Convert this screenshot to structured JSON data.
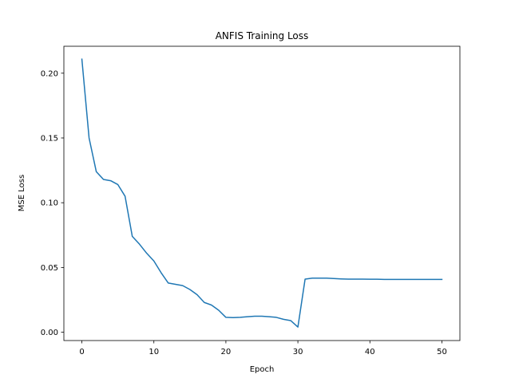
{
  "chart_data": {
    "type": "line",
    "title": "ANFIS Training Loss",
    "xlabel": "Epoch",
    "ylabel": "MSE Loss",
    "xlim": [
      -2.5,
      52.5
    ],
    "ylim": [
      -0.0064,
      0.2208
    ],
    "x_ticks": [
      0,
      10,
      20,
      30,
      40,
      50
    ],
    "x_tick_labels": [
      "0",
      "10",
      "20",
      "30",
      "40",
      "50"
    ],
    "y_ticks": [
      0.0,
      0.05,
      0.1,
      0.15,
      0.2
    ],
    "y_tick_labels": [
      "0.00",
      "0.05",
      "0.10",
      "0.15",
      "0.20"
    ],
    "grid": false,
    "series": [
      {
        "color": "#1f77b4",
        "x": [
          0,
          1,
          2,
          3,
          4,
          5,
          6,
          7,
          8,
          9,
          10,
          11,
          12,
          13,
          14,
          15,
          16,
          17,
          18,
          19,
          20,
          21,
          22,
          23,
          24,
          25,
          26,
          27,
          28,
          29,
          30,
          31,
          32,
          33,
          34,
          35,
          36,
          37,
          38,
          39,
          40,
          41,
          42,
          43,
          44,
          45,
          46,
          47,
          48,
          49,
          50
        ],
        "values": [
          0.2108,
          0.15,
          0.124,
          0.118,
          0.117,
          0.114,
          0.105,
          0.074,
          0.068,
          0.061,
          0.055,
          0.046,
          0.038,
          0.037,
          0.036,
          0.033,
          0.029,
          0.023,
          0.021,
          0.017,
          0.0115,
          0.0113,
          0.0115,
          0.012,
          0.0124,
          0.0124,
          0.012,
          0.0115,
          0.01,
          0.009,
          0.004,
          0.041,
          0.0418,
          0.0418,
          0.0418,
          0.0415,
          0.0412,
          0.041,
          0.041,
          0.041,
          0.0409,
          0.0409,
          0.0408,
          0.0408,
          0.0408,
          0.0408,
          0.0408,
          0.0408,
          0.0408,
          0.0408,
          0.0408
        ]
      }
    ]
  }
}
